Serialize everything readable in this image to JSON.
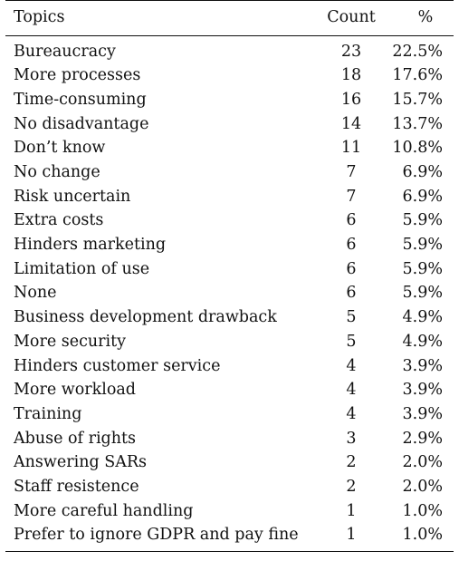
{
  "table": {
    "headers": {
      "topic": "Topics",
      "count": "Count",
      "percent": "%"
    },
    "rows": [
      {
        "topic": "Bureaucracy",
        "count": "23",
        "percent": "22.5%"
      },
      {
        "topic": "More processes",
        "count": "18",
        "percent": "17.6%"
      },
      {
        "topic": "Time-consuming",
        "count": "16",
        "percent": "15.7%"
      },
      {
        "topic": "No disadvantage",
        "count": "14",
        "percent": "13.7%"
      },
      {
        "topic": "Don’t know",
        "count": "11",
        "percent": "10.8%"
      },
      {
        "topic": "No change",
        "count": "7",
        "percent": "6.9%"
      },
      {
        "topic": "Risk uncertain",
        "count": "7",
        "percent": "6.9%"
      },
      {
        "topic": "Extra costs",
        "count": "6",
        "percent": "5.9%"
      },
      {
        "topic": "Hinders marketing",
        "count": "6",
        "percent": "5.9%"
      },
      {
        "topic": "Limitation of use",
        "count": "6",
        "percent": "5.9%"
      },
      {
        "topic": "None",
        "count": "6",
        "percent": "5.9%"
      },
      {
        "topic": "Business development drawback",
        "count": "5",
        "percent": "4.9%"
      },
      {
        "topic": "More security",
        "count": "5",
        "percent": "4.9%"
      },
      {
        "topic": "Hinders customer service",
        "count": "4",
        "percent": "3.9%"
      },
      {
        "topic": "More workload",
        "count": "4",
        "percent": "3.9%"
      },
      {
        "topic": "Training",
        "count": "4",
        "percent": "3.9%"
      },
      {
        "topic": "Abuse of rights",
        "count": "3",
        "percent": "2.9%"
      },
      {
        "topic": "Answering SARs",
        "count": "2",
        "percent": "2.0%"
      },
      {
        "topic": "Staff resistence",
        "count": "2",
        "percent": "2.0%"
      },
      {
        "topic": "More careful handling",
        "count": "1",
        "percent": "1.0%"
      },
      {
        "topic": "Prefer to ignore GDPR and pay fine",
        "count": "1",
        "percent": "1.0%"
      }
    ]
  }
}
